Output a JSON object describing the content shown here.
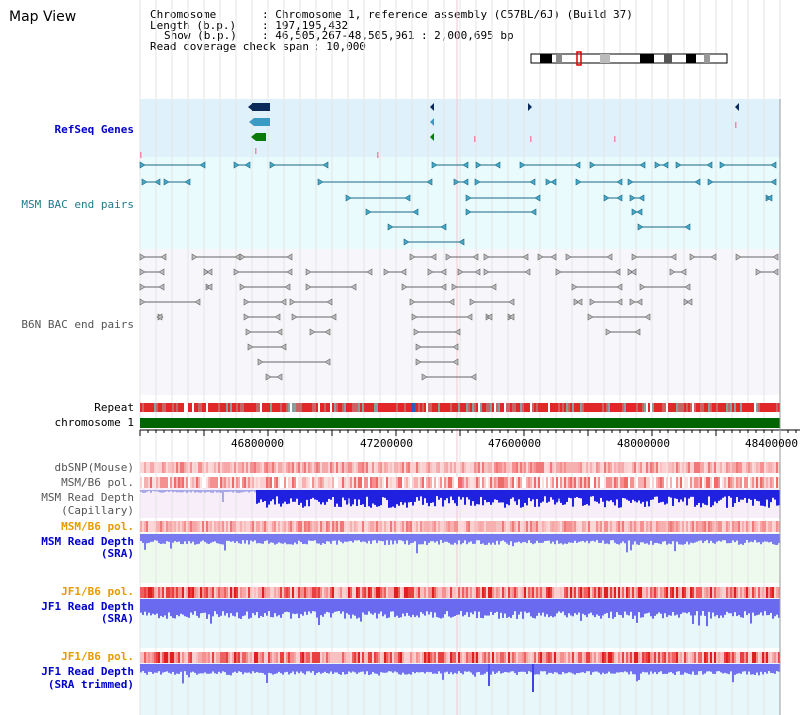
{
  "title": "Map View",
  "info": [
    {
      "key": "Chromosome",
      "value": ": Chromosome 1, reference assembly (C57BL/6J) (Build 37)"
    },
    {
      "key": "Length (b.p.)",
      "value": ": 197,195,432"
    },
    {
      "key": "Show (b.p.)",
      "value": ": 46,505,267-48,505,961 : 2,000,695 bp"
    },
    {
      "key": "Read coverage check span",
      "value": ": 10,000"
    }
  ],
  "tracks": {
    "refseq": "RefSeq Genes",
    "msm_bac": "MSM BAC end pairs",
    "b6n_bac": "B6N BAC end pairs",
    "repeat": "Repeat",
    "chromosome": "chromosome 1",
    "dbsnp": "dbSNP(Mouse)",
    "msm_b6_pol_1": "MSM/B6 pol.",
    "msm_read_depth_cap": "MSM Read Depth",
    "msm_read_depth_cap_sub": "(Capillary)",
    "msm_b6_pol_2": "MSM/B6 pol.",
    "msm_read_depth_sra": "MSM Read Depth",
    "msm_read_depth_sra_sub": "(SRA)",
    "jf1_b6_pol_1": "JF1/B6 pol.",
    "jf1_read_depth_sra": "JF1 Read Depth",
    "jf1_read_depth_sra_sub": "(SRA)",
    "jf1_b6_pol_2": "JF1/B6 pol.",
    "jf1_read_depth_trim": "JF1 Read Depth",
    "jf1_read_depth_trim_sub": "(SRA trimmed)"
  },
  "axis": {
    "ticks": [
      "46800000",
      "47200000",
      "47600000",
      "48000000",
      "48400000"
    ]
  },
  "colors": {
    "refseq_bg": "#dff2fb",
    "msm_bac_bg": "#e9fbfd",
    "b6n_bac_bg": "#f6f6fa",
    "chromosome_bar": "#006400",
    "repeat_red": "#e02020",
    "depth_blue": "#2020e0",
    "depth_light": "#7a7af0"
  }
}
